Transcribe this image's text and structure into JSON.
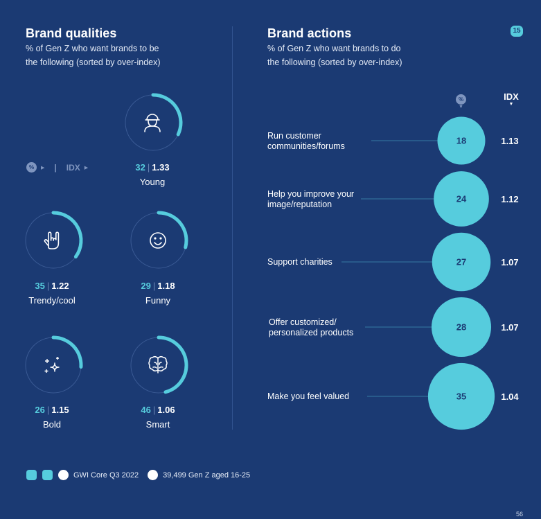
{
  "page_badge": "15",
  "page_number": "56",
  "left": {
    "title": "Brand qualities",
    "subtitle_line1": "% of Gen Z who want brands to be",
    "subtitle_line2": "the following (sorted by over-index)",
    "legend_pct": "%",
    "legend_sep": "|",
    "legend_idx": "IDX"
  },
  "right": {
    "title": "Brand actions",
    "subtitle_line1": "% of Gen Z who want brands to do",
    "subtitle_line2": "the following (sorted by over-index)",
    "col_pct": "%",
    "col_idx": "IDX"
  },
  "colors": {
    "background": "#1b3a73",
    "accent": "#56ccdd",
    "ring_track": "#3a5a94"
  },
  "chart_data": [
    {
      "type": "radial",
      "title": "Brand qualities",
      "items": [
        {
          "label": "Young",
          "pct": 32,
          "idx": "1.33",
          "icon": "person-icon"
        },
        {
          "label": "Trendy/cool",
          "pct": 35,
          "idx": "1.22",
          "icon": "rock-hand-icon"
        },
        {
          "label": "Funny",
          "pct": 29,
          "idx": "1.18",
          "icon": "smiley-icon"
        },
        {
          "label": "Bold",
          "pct": 26,
          "idx": "1.15",
          "icon": "sparkles-icon"
        },
        {
          "label": "Smart",
          "pct": 46,
          "idx": "1.06",
          "icon": "brain-icon"
        }
      ]
    },
    {
      "type": "bubble",
      "title": "Brand actions",
      "items": [
        {
          "label_line1": "Run customer",
          "label_line2": "communities/forums",
          "pct": 18,
          "idx": "1.13"
        },
        {
          "label_line1": "Help you improve your",
          "label_line2": "image/reputation",
          "pct": 24,
          "idx": "1.12"
        },
        {
          "label_line1": "Support charities",
          "label_line2": "",
          "pct": 27,
          "idx": "1.07"
        },
        {
          "label_line1": "Offer customized/",
          "label_line2": "personalized products",
          "pct": 28,
          "idx": "1.07"
        },
        {
          "label_line1": "Make you feel valued",
          "label_line2": "",
          "pct": 35,
          "idx": "1.04"
        }
      ]
    }
  ],
  "footer": {
    "source": "GWI Core Q3 2022",
    "sample": "39,499 Gen Z aged 16-25"
  }
}
